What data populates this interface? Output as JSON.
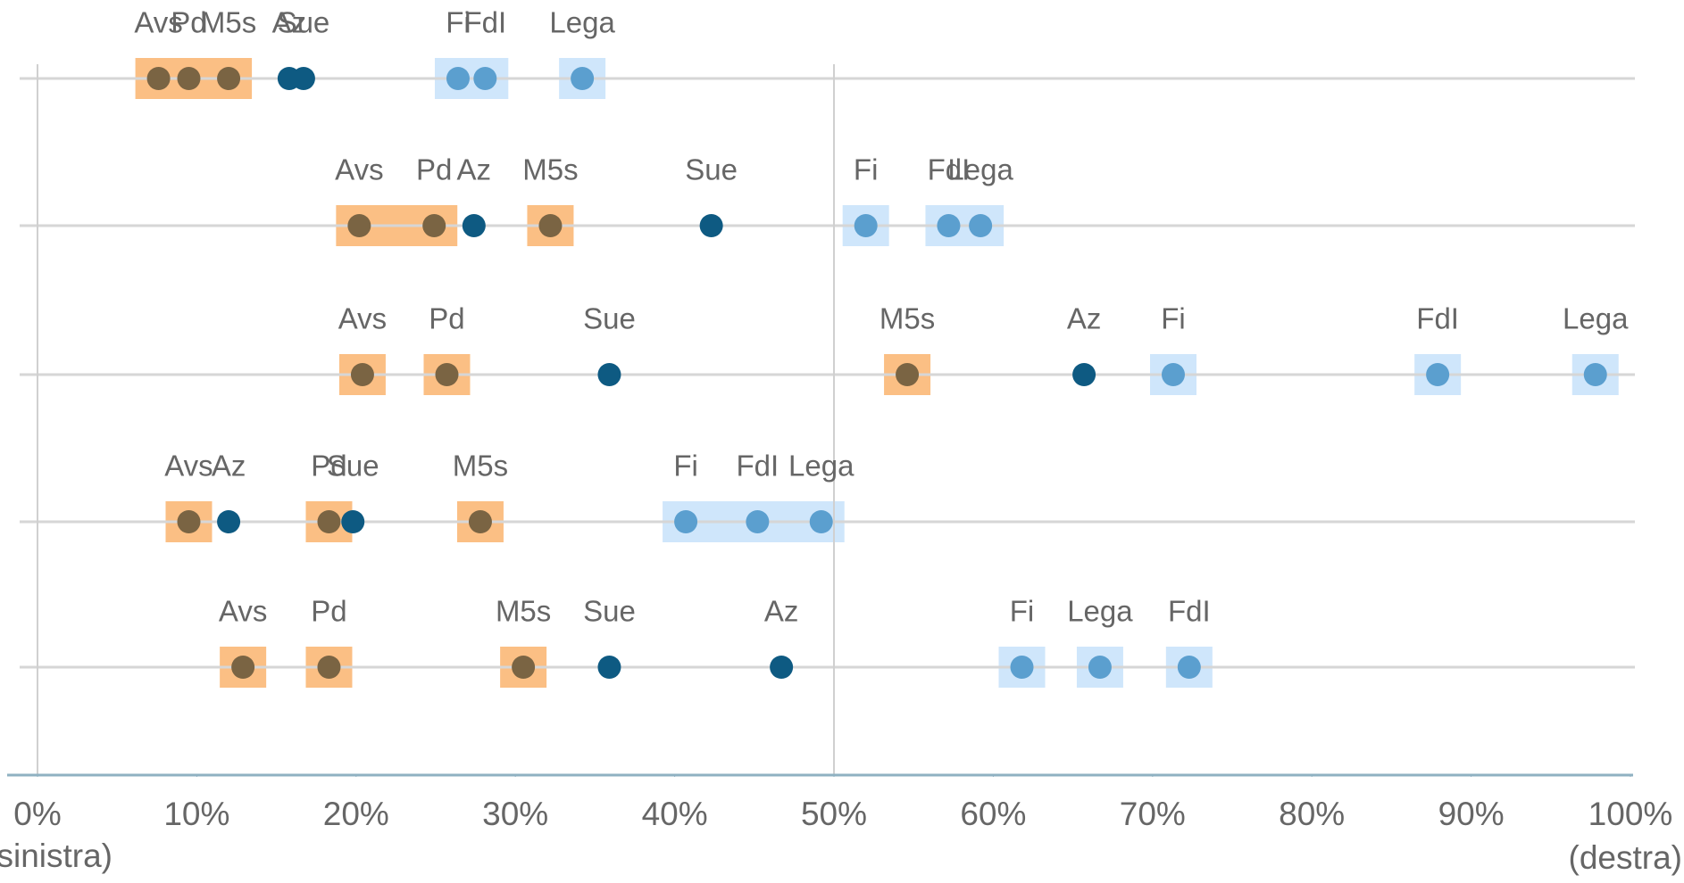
{
  "chart_data": {
    "type": "dot",
    "xlim": [
      0,
      100
    ],
    "xticks": [
      {
        "value": 0,
        "label": "0%"
      },
      {
        "value": 10,
        "label": "10%"
      },
      {
        "value": 20,
        "label": "20%"
      },
      {
        "value": 30,
        "label": "30%"
      },
      {
        "value": 40,
        "label": "40%"
      },
      {
        "value": 50,
        "label": "50%"
      },
      {
        "value": 60,
        "label": "60%"
      },
      {
        "value": 70,
        "label": "70%"
      },
      {
        "value": 80,
        "label": "80%"
      },
      {
        "value": 90,
        "label": "90%"
      },
      {
        "value": 100,
        "label": "100%"
      }
    ],
    "grid_x": [
      0,
      50
    ],
    "left_label": "(sinistra)",
    "right_label": "(destra)",
    "series": [
      {
        "name": "Avs",
        "color": "#7a6443",
        "highlight": "#fbbf84",
        "values": [
          7.6,
          20.2,
          20.4,
          9.5,
          12.9
        ]
      },
      {
        "name": "Pd",
        "color": "#7a6443",
        "highlight": "#fbbf84",
        "values": [
          9.5,
          24.9,
          25.7,
          18.3,
          18.3
        ]
      },
      {
        "name": "M5s",
        "color": "#7a6443",
        "highlight": "#fbbf84",
        "values": [
          12.0,
          32.2,
          54.6,
          27.8,
          30.5
        ]
      },
      {
        "name": "Az",
        "color": "#0e5a82",
        "highlight": null,
        "values": [
          15.8,
          27.4,
          65.7,
          12.0,
          46.7
        ]
      },
      {
        "name": "Sue",
        "color": "#0e5a82",
        "highlight": null,
        "values": [
          16.7,
          42.3,
          35.9,
          19.8,
          35.9
        ]
      },
      {
        "name": "Fi",
        "color": "#5b9fcf",
        "highlight": "#cfe6fb",
        "values": [
          26.4,
          52.0,
          71.3,
          40.7,
          61.8
        ]
      },
      {
        "name": "FdI",
        "color": "#5b9fcf",
        "highlight": "#cfe6fb",
        "values": [
          28.1,
          57.2,
          87.9,
          45.2,
          72.3
        ]
      },
      {
        "name": "Lega",
        "color": "#5b9fcf",
        "highlight": "#cfe6fb",
        "values": [
          34.2,
          59.2,
          97.8,
          49.2,
          66.7
        ]
      }
    ]
  }
}
